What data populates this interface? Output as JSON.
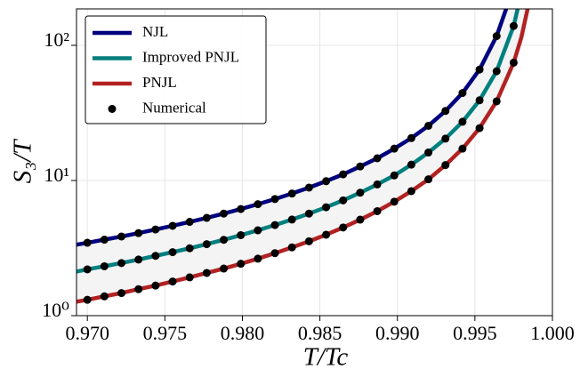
{
  "chart_data": {
    "type": "line",
    "x_label": "T/Tc",
    "y_label": "S₃/T",
    "log_y": true,
    "grid": true,
    "legend_position": "upper-left",
    "band_between": [
      "NJL",
      "PNJL"
    ],
    "band_color": "#f4f4f4",
    "xlim": [
      0.9693,
      1.0
    ],
    "ylim": [
      1,
      186
    ],
    "xticks": [
      {
        "value": 0.97,
        "label": "0.970"
      },
      0.975,
      {
        "value": 0.98,
        "label": "0.980"
      },
      0.985,
      {
        "value": 0.99,
        "label": "0.990"
      },
      0.995,
      {
        "value": 1.0,
        "label": "1.000"
      }
    ],
    "yticks": [
      {
        "value": 1,
        "label": "10⁰"
      },
      {
        "value": 10,
        "label": "10¹"
      },
      {
        "value": 100,
        "label": "10²"
      }
    ],
    "series": [
      {
        "name": "NJL",
        "color": "#00007f",
        "kind": "line",
        "x": [
          0.9693,
          0.97,
          0.9711,
          0.9722,
          0.9733,
          0.9744,
          0.9755,
          0.9766,
          0.9777,
          0.9788,
          0.9799,
          0.981,
          0.9821,
          0.9832,
          0.9843,
          0.9854,
          0.9865,
          0.9876,
          0.9887,
          0.9898,
          0.9909,
          0.992,
          0.9931,
          0.9942,
          0.9953,
          0.9964,
          0.997,
          0.9975
        ],
        "values": [
          3.35,
          3.46,
          3.65,
          3.85,
          4.08,
          4.34,
          4.62,
          4.94,
          5.29,
          5.69,
          6.15,
          6.68,
          7.29,
          8.01,
          8.86,
          9.88,
          11.1,
          12.7,
          14.6,
          17.2,
          20.6,
          25.4,
          32.7,
          44.4,
          66.2,
          117,
          184,
          318
        ]
      },
      {
        "name": "Improved PNJL",
        "color": "#007f7f",
        "kind": "line",
        "x": [
          0.9693,
          0.97,
          0.9711,
          0.9722,
          0.9733,
          0.9744,
          0.9755,
          0.9766,
          0.9777,
          0.9788,
          0.9799,
          0.981,
          0.9821,
          0.9832,
          0.9843,
          0.9854,
          0.9865,
          0.9876,
          0.9887,
          0.9898,
          0.9909,
          0.992,
          0.9931,
          0.9942,
          0.9953,
          0.9964,
          0.9975,
          0.998
        ],
        "values": [
          2.12,
          2.2,
          2.32,
          2.45,
          2.6,
          2.77,
          2.95,
          3.15,
          3.38,
          3.64,
          3.94,
          4.28,
          4.68,
          5.14,
          5.69,
          6.34,
          7.13,
          8.12,
          9.35,
          10.9,
          13.1,
          16.1,
          20.4,
          27.2,
          39.2,
          64.3,
          139,
          245
        ]
      },
      {
        "name": "PNJL",
        "color": "#b22222",
        "kind": "line",
        "x": [
          0.9693,
          0.97,
          0.9711,
          0.9722,
          0.9733,
          0.9744,
          0.9755,
          0.9766,
          0.9777,
          0.9788,
          0.9799,
          0.981,
          0.9821,
          0.9832,
          0.9843,
          0.9854,
          0.9865,
          0.9876,
          0.9887,
          0.9898,
          0.9909,
          0.992,
          0.9931,
          0.9942,
          0.9953,
          0.9964,
          0.9975,
          0.998,
          0.9985
        ],
        "values": [
          1.27,
          1.31,
          1.39,
          1.47,
          1.57,
          1.67,
          1.79,
          1.92,
          2.07,
          2.23,
          2.42,
          2.64,
          2.9,
          3.2,
          3.55,
          3.97,
          4.49,
          5.13,
          5.93,
          6.97,
          8.34,
          10.2,
          13.0,
          17.2,
          24.4,
          38.5,
          74.4,
          115,
          210
        ]
      },
      {
        "name": "Numerical",
        "color": "#000000",
        "kind": "scatter",
        "x": [
          0.97,
          0.9711,
          0.9722,
          0.9733,
          0.9744,
          0.9755,
          0.9766,
          0.9777,
          0.9788,
          0.9799,
          0.981,
          0.9821,
          0.9832,
          0.9843,
          0.9854,
          0.9865,
          0.9876,
          0.9887,
          0.9898,
          0.9909,
          0.992,
          0.9931,
          0.9942,
          0.9953,
          0.9964,
          0.97,
          0.9711,
          0.9722,
          0.9733,
          0.9744,
          0.9755,
          0.9766,
          0.9777,
          0.9788,
          0.9799,
          0.981,
          0.9821,
          0.9832,
          0.9843,
          0.9854,
          0.9865,
          0.9876,
          0.9887,
          0.9898,
          0.9909,
          0.992,
          0.9931,
          0.9942,
          0.9953,
          0.9964,
          0.9975,
          0.97,
          0.9711,
          0.9722,
          0.9733,
          0.9744,
          0.9755,
          0.9766,
          0.9777,
          0.9788,
          0.9799,
          0.981,
          0.9821,
          0.9832,
          0.9843,
          0.9854,
          0.9865,
          0.9876,
          0.9887,
          0.9898,
          0.9909,
          0.992,
          0.9931,
          0.9942,
          0.9953,
          0.9964,
          0.9975
        ],
        "values": [
          3.46,
          3.65,
          3.85,
          4.08,
          4.34,
          4.62,
          4.94,
          5.29,
          5.69,
          6.15,
          6.68,
          7.29,
          8.01,
          8.86,
          9.88,
          11.1,
          12.7,
          14.6,
          17.2,
          20.6,
          25.4,
          32.7,
          44.4,
          66.2,
          117,
          2.2,
          2.32,
          2.45,
          2.6,
          2.77,
          2.95,
          3.15,
          3.38,
          3.64,
          3.94,
          4.28,
          4.68,
          5.14,
          5.69,
          6.34,
          7.13,
          8.12,
          9.35,
          10.9,
          13.1,
          16.1,
          20.4,
          27.2,
          39.2,
          64.3,
          139,
          1.31,
          1.39,
          1.47,
          1.57,
          1.67,
          1.79,
          1.92,
          2.07,
          2.23,
          2.42,
          2.64,
          2.9,
          3.2,
          3.55,
          3.97,
          4.49,
          5.13,
          5.93,
          6.97,
          8.34,
          10.2,
          13.0,
          17.2,
          24.4,
          38.5,
          74.4
        ]
      }
    ]
  }
}
